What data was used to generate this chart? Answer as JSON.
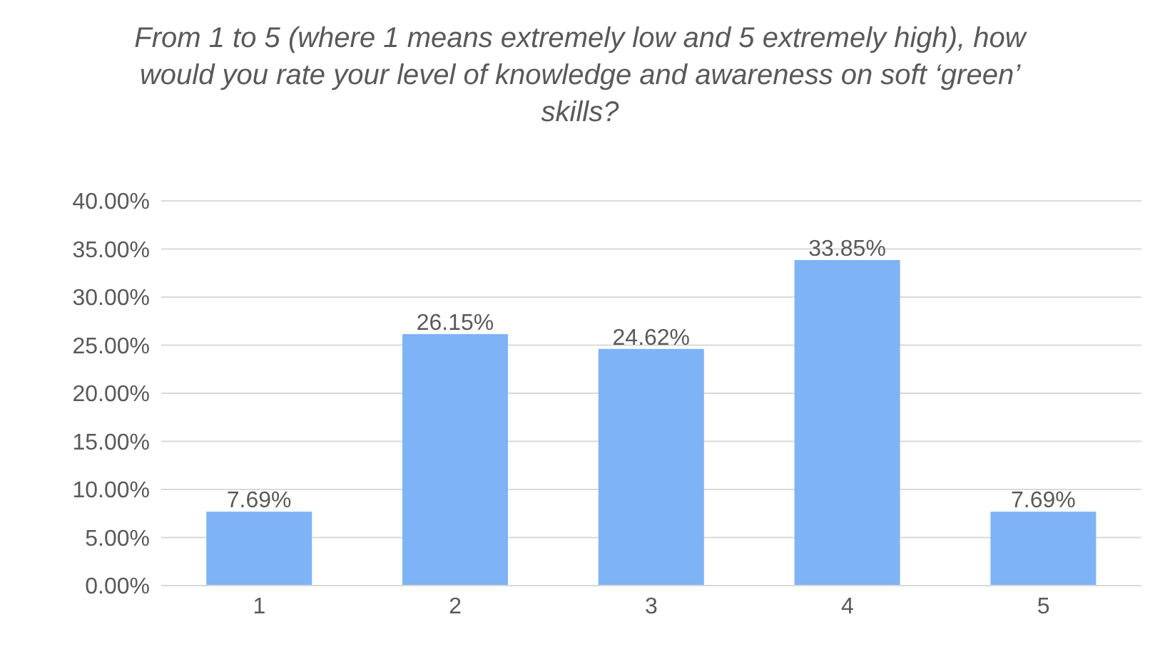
{
  "chart_data": {
    "type": "bar",
    "title": "From 1 to 5 (where 1 means extremely low and 5 extremely high), how would you rate your level of knowledge and awareness on soft ‘green’ skills?",
    "categories": [
      "1",
      "2",
      "3",
      "4",
      "5"
    ],
    "values": [
      7.69,
      26.15,
      24.62,
      33.85,
      7.69
    ],
    "value_labels": [
      "7.69%",
      "26.15%",
      "24.62%",
      "33.85%",
      "7.69%"
    ],
    "color": "#7eb3f5",
    "ylim": [
      0,
      40
    ],
    "yticks": [
      {
        "value": 0,
        "label": "0.00%"
      },
      {
        "value": 5,
        "label": "5.00%"
      },
      {
        "value": 10,
        "label": "10.00%"
      },
      {
        "value": 15,
        "label": "15.00%"
      },
      {
        "value": 20,
        "label": "20.00%"
      },
      {
        "value": 25,
        "label": "25.00%"
      },
      {
        "value": 30,
        "label": "30.00%"
      },
      {
        "value": 35,
        "label": "35.00%"
      },
      {
        "value": 40,
        "label": "40.00%"
      }
    ],
    "grid": "y"
  }
}
